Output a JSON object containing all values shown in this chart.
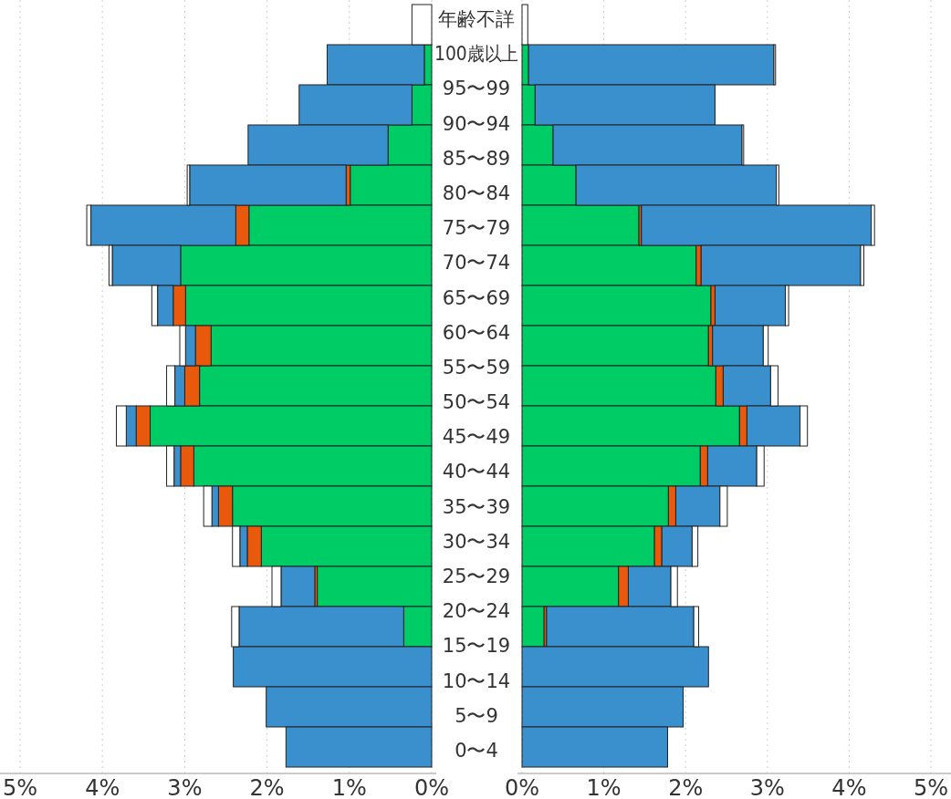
{
  "chart_data": [
    {
      "type": "bar",
      "orientation": "horizontal",
      "stacked": true,
      "tick_labels": "x",
      "grid": "x",
      "categories": [
        null,
        null,
        null,
        null,
        null,
        null,
        null,
        null,
        null,
        null,
        null,
        null,
        null,
        null,
        null,
        null,
        null,
        null,
        null
      ],
      "xlim": [
        5,
        0
      ],
      "xticks": [
        {
          "value": 5,
          "label": "5%"
        },
        {
          "value": 4,
          "label": "4%"
        },
        {
          "value": 3,
          "label": "3%"
        },
        {
          "value": 2,
          "label": "2%"
        },
        {
          "value": 1,
          "label": "1%"
        },
        {
          "value": 0,
          "label": "0%"
        }
      ],
      "series": [
        {
          "color": "#00cc66",
          "values": [
            null,
            0.09,
            0.24,
            0.53,
            0.99,
            2.22,
            3.05,
            2.99,
            2.68,
            2.82,
            3.42,
            2.89,
            2.42,
            2.07,
            1.39,
            0.34,
            null,
            null,
            null
          ]
        },
        {
          "color": "#e8590c",
          "values": [
            null,
            null,
            null,
            null,
            0.05,
            0.16,
            null,
            0.15,
            0.19,
            0.18,
            0.17,
            0.16,
            0.17,
            0.17,
            0.03,
            null,
            null,
            null,
            null
          ]
        },
        {
          "color": "#3a8fcd",
          "values": [
            null,
            1.18,
            1.37,
            1.7,
            1.9,
            1.76,
            0.83,
            0.19,
            0.12,
            0.12,
            0.12,
            0.08,
            0.08,
            0.09,
            0.41,
            2.0,
            2.41,
            2.01,
            1.77
          ]
        },
        {
          "color": "#ffffff",
          "values": [
            0.24,
            null,
            null,
            null,
            0.03,
            0.05,
            0.04,
            0.07,
            0.07,
            0.1,
            0.12,
            0.09,
            0.1,
            0.09,
            0.11,
            0.09,
            null,
            null,
            null
          ]
        }
      ],
      "annotations": [
        "年齢不詳",
        "100歳以上",
        "95〜99",
        "90〜94",
        "85〜89",
        "80〜84",
        "75〜79",
        "70〜74",
        "65〜69",
        "60〜64",
        "55〜59",
        "50〜54",
        "45〜49",
        "40〜44",
        "35〜39",
        "30〜34",
        "25〜29",
        "20〜24",
        "15〜19",
        "10〜14",
        "5〜9",
        "0〜4"
      ]
    },
    {
      "type": "bar",
      "orientation": "horizontal",
      "stacked": true,
      "tick_labels": "x",
      "grid": "x",
      "categories": [
        null,
        null,
        null,
        null,
        null,
        null,
        null,
        null,
        null,
        null,
        null,
        null,
        null,
        null,
        null,
        null,
        null,
        null,
        null
      ],
      "xlim": [
        0,
        5
      ],
      "xticks": [
        {
          "value": 0,
          "label": "0%"
        },
        {
          "value": 1,
          "label": "1%"
        },
        {
          "value": 2,
          "label": "2%"
        },
        {
          "value": 3,
          "label": "3%"
        },
        {
          "value": 4,
          "label": "4%"
        },
        {
          "value": 5,
          "label": "5%"
        }
      ],
      "series": [
        {
          "color": "#00cc66",
          "values": [
            null,
            0.08,
            0.16,
            0.38,
            0.66,
            1.43,
            2.13,
            2.31,
            2.28,
            2.37,
            2.66,
            2.18,
            1.79,
            1.62,
            1.18,
            0.27,
            null,
            null,
            null
          ]
        },
        {
          "color": "#e8590c",
          "values": [
            null,
            null,
            null,
            null,
            null,
            0.03,
            0.06,
            0.05,
            0.05,
            0.09,
            0.09,
            0.09,
            0.09,
            0.09,
            0.12,
            0.03,
            null,
            null,
            null
          ]
        },
        {
          "color": "#3a8fcd",
          "values": [
            null,
            3.0,
            2.2,
            2.31,
            2.45,
            2.81,
            1.95,
            0.86,
            0.62,
            0.58,
            0.65,
            0.6,
            0.54,
            0.37,
            0.52,
            1.8,
            2.28,
            1.97,
            1.78
          ]
        },
        {
          "color": "#ffffff",
          "values": [
            0.07,
            0.02,
            null,
            0.02,
            0.03,
            0.04,
            0.04,
            0.04,
            0.06,
            0.09,
            0.09,
            0.09,
            0.09,
            0.07,
            0.08,
            0.06,
            null,
            null,
            null
          ]
        }
      ]
    }
  ]
}
